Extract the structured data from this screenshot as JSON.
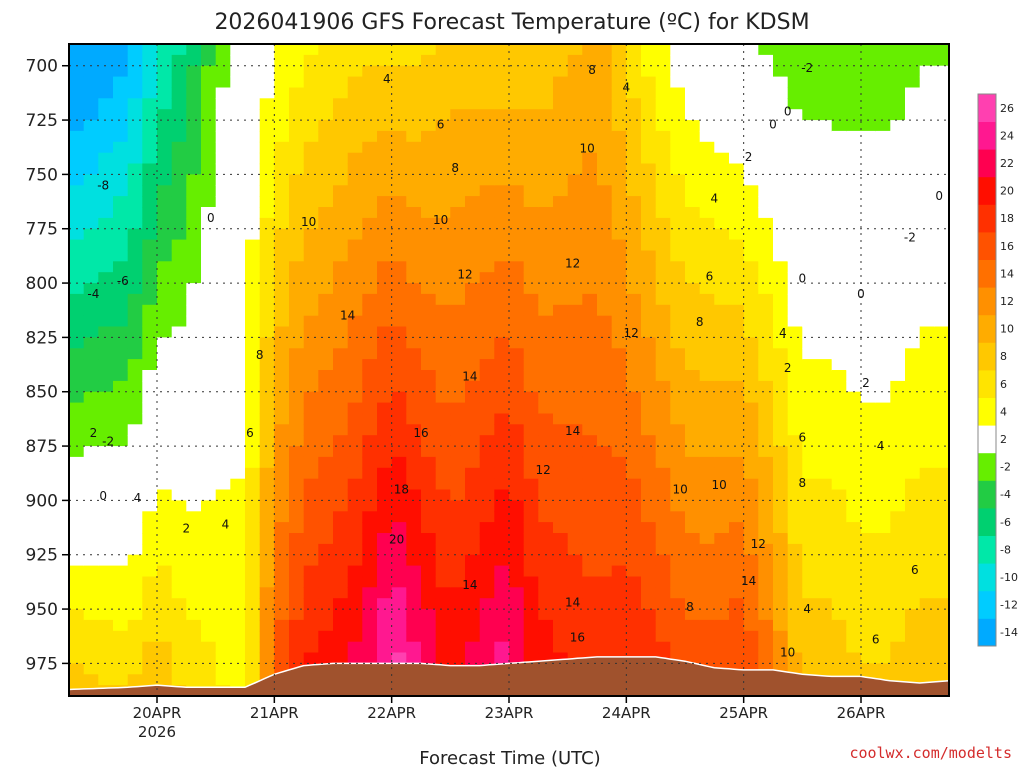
{
  "chart_data": {
    "type": "heatmap",
    "title": "2026041906 GFS Forecast Temperature (ºC) for KDSM",
    "xlabel": "Forecast Time (UTC)",
    "ylabel": "",
    "credit": "coolwx.com/modelts",
    "x_ticks": [
      {
        "label": "20APR",
        "sub": "2026",
        "hour": 18
      },
      {
        "label": "21APR",
        "sub": "",
        "hour": 42
      },
      {
        "label": "22APR",
        "sub": "",
        "hour": 66
      },
      {
        "label": "23APR",
        "sub": "",
        "hour": 90
      },
      {
        "label": "24APR",
        "sub": "",
        "hour": 114
      },
      {
        "label": "25APR",
        "sub": "",
        "hour": 138
      },
      {
        "label": "26APR",
        "sub": "",
        "hour": 162
      }
    ],
    "xlim": [
      0,
      180
    ],
    "ylim": [
      990,
      690
    ],
    "y_ticks": [
      700,
      725,
      750,
      775,
      800,
      825,
      850,
      875,
      900,
      925,
      950,
      975
    ],
    "grid": true,
    "colorbar": {
      "levels": [
        -14,
        -12,
        -10,
        -8,
        -6,
        -4,
        -2,
        2,
        4,
        6,
        8,
        10,
        12,
        14,
        16,
        18,
        20,
        22,
        24,
        26
      ],
      "colors": [
        "#00aaff",
        "#00ccff",
        "#00e0e0",
        "#00e8a8",
        "#00d070",
        "#22cc44",
        "#66ee00",
        "#ffffff",
        "#ffff00",
        "#ffe400",
        "#ffc800",
        "#ffac00",
        "#ff9000",
        "#ff7000",
        "#ff5200",
        "#ff3000",
        "#ff0e00",
        "#ff0050",
        "#ff1890",
        "#ff40b0"
      ]
    },
    "time_hours": [
      0,
      12,
      18,
      24,
      30,
      36,
      42,
      48,
      54,
      60,
      66,
      72,
      78,
      84,
      90,
      96,
      102,
      108,
      114,
      120,
      126,
      132,
      138,
      144,
      150,
      156,
      162,
      168,
      174,
      180
    ],
    "surface_pressure": [
      987,
      986,
      985,
      986,
      986,
      986,
      980,
      976,
      975,
      975,
      975,
      975,
      976,
      976,
      975,
      974,
      973,
      972,
      972,
      972,
      974,
      977,
      978,
      978,
      980,
      981,
      981,
      983,
      984,
      983
    ],
    "temp_profiles": [
      {
        "hour": 0,
        "p700": -17,
        "p975": 6
      },
      {
        "hour": 12,
        "p700": -14,
        "p975": 5
      },
      {
        "hour": 18,
        "p700": -10,
        "p975": 7
      },
      {
        "hour": 24,
        "p700": -7,
        "p975": 5
      },
      {
        "hour": 30,
        "p700": -3,
        "p975": 4
      },
      {
        "hour": 36,
        "p700": 0,
        "p975": 3
      },
      {
        "hour": 42,
        "p700": 2,
        "p975": 14
      },
      {
        "hour": 48,
        "p700": 4,
        "p975": 18
      },
      {
        "hour": 54,
        "p700": 5,
        "p975": 19
      },
      {
        "hour": 60,
        "p700": 6,
        "p975": 21
      },
      {
        "hour": 66,
        "p700": 6,
        "p975": 25
      },
      {
        "hour": 72,
        "p700": 6,
        "p975": 22
      },
      {
        "hour": 78,
        "p700": 7,
        "p975": 19
      },
      {
        "hour": 84,
        "p700": 7,
        "p975": 21
      },
      {
        "hour": 90,
        "p700": 7,
        "p975": 23
      },
      {
        "hour": 96,
        "p700": 7,
        "p975": 19
      },
      {
        "hour": 102,
        "p700": 8,
        "p975": 18
      },
      {
        "hour": 108,
        "p700": 9,
        "p975": 17
      },
      {
        "hour": 114,
        "p700": 6,
        "p975": 18
      },
      {
        "hour": 120,
        "p700": 3,
        "p975": 17
      },
      {
        "hour": 126,
        "p700": 1,
        "p975": 15
      },
      {
        "hour": 132,
        "p700": 0,
        "p975": 15
      },
      {
        "hour": 138,
        "p700": -1,
        "p975": 16
      },
      {
        "hour": 144,
        "p700": -2,
        "p975": 12
      },
      {
        "hour": 150,
        "p700": -3,
        "p975": 7
      },
      {
        "hour": 156,
        "p700": -3,
        "p975": 7
      },
      {
        "hour": 162,
        "p700": -3,
        "p975": 6
      },
      {
        "hour": 168,
        "p700": -3,
        "p975": 6
      },
      {
        "hour": 174,
        "p700": -2,
        "p975": 7
      },
      {
        "hour": 180,
        "p700": -2,
        "p975": 7
      }
    ],
    "contour_labels": [
      {
        "text": "-8",
        "hour": 7,
        "p": 755
      },
      {
        "text": "-6",
        "hour": 11,
        "p": 799
      },
      {
        "text": "-4",
        "hour": 5,
        "p": 805
      },
      {
        "text": "-2",
        "hour": 8,
        "p": 873
      },
      {
        "text": "2",
        "hour": 5,
        "p": 869
      },
      {
        "text": "0",
        "hour": 7,
        "p": 898
      },
      {
        "text": "4",
        "hour": 14,
        "p": 899
      },
      {
        "text": "2",
        "hour": 24,
        "p": 913
      },
      {
        "text": "4",
        "hour": 32,
        "p": 911
      },
      {
        "text": "0",
        "hour": 29,
        "p": 770
      },
      {
        "text": "6",
        "hour": 37,
        "p": 869
      },
      {
        "text": "8",
        "hour": 39,
        "p": 833
      },
      {
        "text": "10",
        "hour": 49,
        "p": 772
      },
      {
        "text": "4",
        "hour": 65,
        "p": 706
      },
      {
        "text": "6",
        "hour": 76,
        "p": 727
      },
      {
        "text": "8",
        "hour": 79,
        "p": 747
      },
      {
        "text": "10",
        "hour": 76,
        "p": 771
      },
      {
        "text": "12",
        "hour": 81,
        "p": 796
      },
      {
        "text": "14",
        "hour": 57,
        "p": 815
      },
      {
        "text": "14",
        "hour": 82,
        "p": 843
      },
      {
        "text": "16",
        "hour": 72,
        "p": 869
      },
      {
        "text": "18",
        "hour": 68,
        "p": 895
      },
      {
        "text": "20",
        "hour": 67,
        "p": 918
      },
      {
        "text": "14",
        "hour": 82,
        "p": 939
      },
      {
        "text": "12",
        "hour": 97,
        "p": 886
      },
      {
        "text": "14",
        "hour": 103,
        "p": 868
      },
      {
        "text": "14",
        "hour": 103,
        "p": 947
      },
      {
        "text": "16",
        "hour": 104,
        "p": 963
      },
      {
        "text": "12",
        "hour": 103,
        "p": 791
      },
      {
        "text": "10",
        "hour": 106,
        "p": 738
      },
      {
        "text": "8",
        "hour": 107,
        "p": 702
      },
      {
        "text": "4",
        "hour": 114,
        "p": 710
      },
      {
        "text": "12",
        "hour": 115,
        "p": 823
      },
      {
        "text": "10",
        "hour": 125,
        "p": 895
      },
      {
        "text": "10",
        "hour": 133,
        "p": 893
      },
      {
        "text": "8",
        "hour": 127,
        "p": 949
      },
      {
        "text": "12",
        "hour": 141,
        "p": 920
      },
      {
        "text": "14",
        "hour": 139,
        "p": 937
      },
      {
        "text": "8",
        "hour": 129,
        "p": 818
      },
      {
        "text": "6",
        "hour": 131,
        "p": 797
      },
      {
        "text": "4",
        "hour": 132,
        "p": 761
      },
      {
        "text": "2",
        "hour": 139,
        "p": 742
      },
      {
        "text": "0",
        "hour": 144,
        "p": 727
      },
      {
        "text": "0",
        "hour": 147,
        "p": 721
      },
      {
        "text": "4",
        "hour": 146,
        "p": 823
      },
      {
        "text": "2",
        "hour": 147,
        "p": 839
      },
      {
        "text": "6",
        "hour": 150,
        "p": 871
      },
      {
        "text": "8",
        "hour": 150,
        "p": 892
      },
      {
        "text": "10",
        "hour": 147,
        "p": 970
      },
      {
        "text": "4",
        "hour": 151,
        "p": 950
      },
      {
        "text": "6",
        "hour": 165,
        "p": 964
      },
      {
        "text": "6",
        "hour": 173,
        "p": 932
      },
      {
        "text": "4",
        "hour": 166,
        "p": 875
      },
      {
        "text": "2",
        "hour": 163,
        "p": 846
      },
      {
        "text": "0",
        "hour": 150,
        "p": 798
      },
      {
        "text": "0",
        "hour": 162,
        "p": 805
      },
      {
        "text": "-2",
        "hour": 172,
        "p": 779
      },
      {
        "text": "-2",
        "hour": 151,
        "p": 701
      },
      {
        "text": "0",
        "hour": 178,
        "p": 760
      }
    ]
  }
}
